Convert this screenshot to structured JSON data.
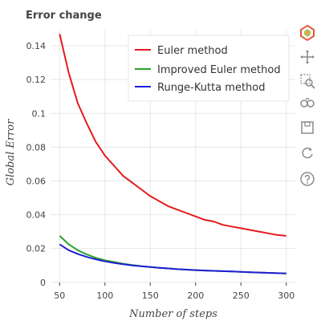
{
  "chart_data": {
    "type": "line",
    "title": "Error change",
    "xlabel": "Number of steps",
    "ylabel": "Global Error",
    "xlim": [
      40,
      310
    ],
    "ylim": [
      -0.002,
      0.15
    ],
    "xticks": [
      50,
      100,
      150,
      200,
      250,
      300
    ],
    "yticks": [
      0,
      0.02,
      0.04,
      0.06,
      0.08,
      0.1,
      0.12,
      0.14
    ],
    "ytick_labels": [
      "0",
      "0.02",
      "0.04",
      "0.06",
      "0.08",
      "0.1",
      "0.12",
      "0.14"
    ],
    "grid": true,
    "legend_position": "top-right",
    "x": [
      50,
      60,
      70,
      80,
      90,
      100,
      110,
      120,
      130,
      140,
      150,
      160,
      170,
      180,
      190,
      200,
      210,
      220,
      230,
      240,
      250,
      260,
      270,
      280,
      290,
      300
    ],
    "series": [
      {
        "name": "Euler method",
        "color": "#e41a1c",
        "values": [
          0.147,
          0.124,
          0.106,
          0.094,
          0.083,
          0.075,
          0.069,
          0.063,
          0.059,
          0.055,
          0.051,
          0.048,
          0.045,
          0.043,
          0.041,
          0.039,
          0.037,
          0.036,
          0.034,
          0.033,
          0.032,
          0.031,
          0.03,
          0.029,
          0.028,
          0.0275
        ]
      },
      {
        "name": "Improved Euler method",
        "color": "#2ca02c",
        "values": [
          0.0275,
          0.0225,
          0.019,
          0.0165,
          0.0145,
          0.013,
          0.012,
          0.011,
          0.0102,
          0.0096,
          0.009,
          0.0086,
          0.0082,
          0.0078,
          0.0075,
          0.0072,
          0.007,
          0.0068,
          0.0066,
          0.0064,
          0.0062,
          0.006,
          0.0058,
          0.0056,
          0.0054,
          0.0052
        ]
      },
      {
        "name": "Runge-Kutta method",
        "color": "#1f1fd6",
        "values": [
          0.0225,
          0.019,
          0.0168,
          0.015,
          0.0136,
          0.0124,
          0.0115,
          0.0107,
          0.01,
          0.0095,
          0.009,
          0.0086,
          0.0082,
          0.0078,
          0.0075,
          0.0072,
          0.007,
          0.0068,
          0.0066,
          0.0064,
          0.0062,
          0.006,
          0.0058,
          0.0056,
          0.0054,
          0.0052
        ]
      }
    ]
  },
  "toolbar": {
    "accent_color": "#2a8fd6",
    "icon_color": "#8a8a8a",
    "tools": [
      {
        "icon": "bokeh-logo-icon"
      },
      {
        "icon": "pan-icon"
      },
      {
        "icon": "box-zoom-icon"
      },
      {
        "icon": "wheel-zoom-icon"
      },
      {
        "icon": "save-icon"
      },
      {
        "icon": "reset-icon"
      },
      {
        "icon": "help-icon"
      }
    ]
  }
}
